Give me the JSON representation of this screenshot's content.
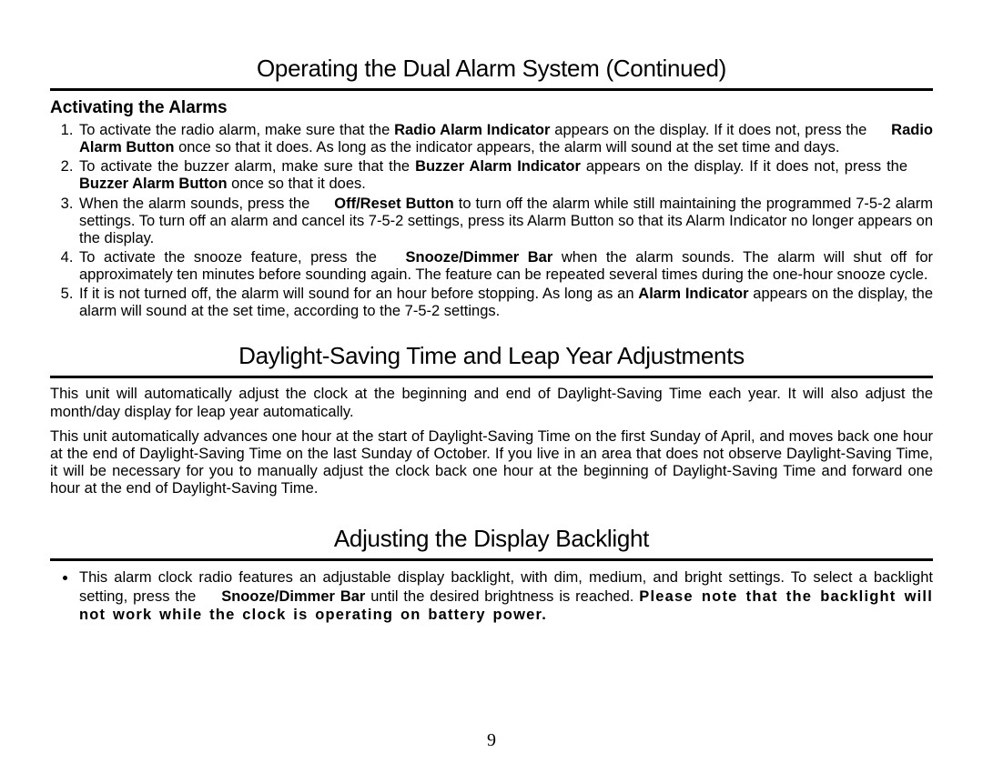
{
  "section1": {
    "title": "Operating the Dual Alarm System (Continued)",
    "subhead": "Activating the Alarms",
    "items": [
      {
        "pre": "To activate the radio alarm, make sure that the ",
        "bold1": "Radio Alarm Indicator",
        "mid": " appears on the display.  If it does not, press the ",
        "bold2": "Radio Alarm Button",
        "post": " once so that it does.  As long as the indicator appears, the alarm will sound at the set time and days."
      },
      {
        "pre": "To activate the buzzer alarm, make sure that the ",
        "bold1": "Buzzer Alarm Indicator",
        "mid": " appears on the display.  If it does not, press the ",
        "bold2": "Buzzer Alarm Button",
        "post": " once so that it does."
      },
      {
        "pre": "When the alarm sounds, press the ",
        "bold1": "Off/Reset Button",
        "post": " to turn off the alarm while still maintaining the programmed 7-5-2 alarm settings.  To turn off an alarm and cancel its 7-5-2 settings, press its Alarm Button so that its Alarm Indicator no longer appears on the display."
      },
      {
        "pre": "To activate the snooze feature, press the ",
        "bold1": "Snooze/Dimmer Bar",
        "post": " when the alarm sounds.  The alarm will shut off for approximately ten minutes before sounding again.  The feature can be repeated several times during the one-hour snooze cycle."
      },
      {
        "pre": "If it is not turned off, the alarm will sound for an hour before stopping.  As long as an ",
        "bold1": "Alarm Indicator",
        "post": " appears on the display, the alarm will sound at the set time, according to the 7-5-2 settings."
      }
    ]
  },
  "section2": {
    "title": "Daylight-Saving Time and Leap Year Adjustments",
    "p1": "This unit will automatically adjust the clock at the beginning and end of Daylight-Saving Time each year. It will also adjust the month/day display for leap year automatically.",
    "p2": "This unit automatically advances one hour at the start of Daylight-Saving Time on the first Sunday of April, and moves back one hour at the end of Daylight-Saving Time on the last Sunday of October. If you live in an area that does not observe Daylight-Saving Time, it will be necessary for you to manually adjust the clock back one hour at the beginning of Daylight-Saving Time and forward one hour at the end of Daylight-Saving Time."
  },
  "section3": {
    "title": "Adjusting the Display Backlight",
    "bullet_pre": "This alarm clock radio features an adjustable display backlight, with dim, medium, and bright settings. To select a backlight setting, press the ",
    "bullet_bold": "Snooze/Dimmer Bar",
    "bullet_post": " until the desired brightness is reached. ",
    "note": "Please note that the backlight will not work while the clock is operating on battery power."
  },
  "page_number": "9"
}
